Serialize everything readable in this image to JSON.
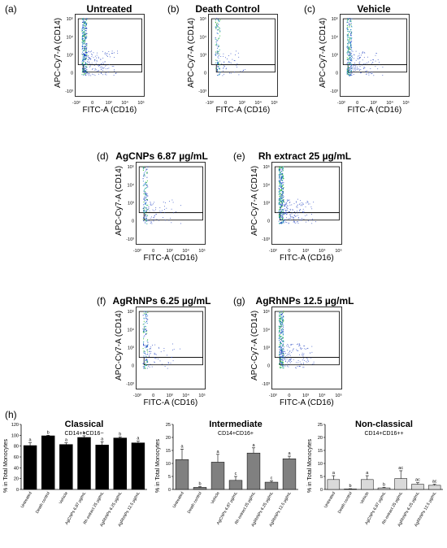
{
  "flow": {
    "x_label": "FITC-A (CD16)",
    "y_label": "APC-Cy7-A (CD14)",
    "x_ticks": [
      "-10³",
      "0",
      "10³",
      "10⁴",
      "10⁵"
    ],
    "y_ticks": [
      "10⁵",
      "10⁴",
      "10³",
      "0",
      "-10³"
    ],
    "panels": [
      {
        "letter": "(a)",
        "title": "Untreated"
      },
      {
        "letter": "(b)",
        "title": "Death Control"
      },
      {
        "letter": "(c)",
        "title": "Vehicle"
      },
      {
        "letter": "(d)",
        "title": "AgCNPs 6.87 µg/mL"
      },
      {
        "letter": "(e)",
        "title": "Rh extract 25 µg/mL"
      },
      {
        "letter": "(f)",
        "title": "AgRhNPs 6.25 µg/mL"
      },
      {
        "letter": "(g)",
        "title": "AgRhNPs 12.5 µg/mL"
      }
    ]
  },
  "bars_panel_letter": "(h)",
  "chart_data": [
    {
      "type": "bar",
      "title": "Classical",
      "subtitle": "CD14++CD16−",
      "ylabel": "% in Total Monocytes",
      "ylim": [
        0,
        120
      ],
      "yticks": [
        0,
        20,
        40,
        60,
        80,
        100,
        120
      ],
      "categories": [
        "Untreated",
        "Death control",
        "Vehicle",
        "AgCNPs 6.87 µg/mL",
        "Rh extract 25 µg/mL",
        "AgRhNPs 6.25 µg/mL",
        "AgRhNPs 12.5 µg/mL"
      ],
      "values": [
        81,
        99,
        83,
        96,
        82,
        95,
        86
      ],
      "errors": [
        5,
        1,
        3,
        3,
        6,
        2,
        3
      ],
      "letters": [
        "a",
        "b",
        "a",
        "b",
        "a",
        "b",
        "a"
      ],
      "bar_color": "#000000"
    },
    {
      "type": "bar",
      "title": "Intermediate",
      "subtitle": "CD14+CD16+",
      "ylabel": "% in Total Monocytes",
      "ylim": [
        0,
        25
      ],
      "yticks": [
        0,
        5,
        10,
        15,
        20,
        25
      ],
      "categories": [
        "Untreated",
        "Death control",
        "Vehicle",
        "AgCNPs 6.87 µg/mL",
        "Rh extract 25 µg/mL",
        "AgRhNPs 6.25 µg/mL",
        "AgRhNPs 12.5 µg/mL"
      ],
      "values": [
        11.5,
        0.8,
        10.5,
        3.5,
        14,
        2.8,
        11.8
      ],
      "errors": [
        4,
        0.3,
        3,
        1.5,
        2,
        0.5,
        1
      ],
      "letters": [
        "a",
        "b",
        "a",
        "c",
        "a",
        "c",
        "a"
      ],
      "bar_color": "#808080"
    },
    {
      "type": "bar",
      "title": "Non-classical",
      "subtitle": "CD14+CD16++",
      "ylabel": "% in Total Monocytes",
      "ylim": [
        0,
        25
      ],
      "yticks": [
        0,
        5,
        10,
        15,
        20,
        25
      ],
      "categories": [
        "Untreated",
        "Death control",
        "Vehicle",
        "AgCNPs 6.87 µg/mL",
        "Rh extract 25 µg/mL",
        "AgRhNPs 6.25 µg/mL",
        "AgRhNPs 12.5 µg/mL"
      ],
      "values": [
        3.8,
        0.2,
        3.8,
        0.6,
        4.2,
        2,
        1.6
      ],
      "errors": [
        1.5,
        0.1,
        1.5,
        0.2,
        3,
        0.6,
        0.4
      ],
      "letters": [
        "a",
        "b",
        "a",
        "b",
        "ac",
        "ac",
        "ac"
      ],
      "bar_color": "#d9d9d9"
    }
  ]
}
